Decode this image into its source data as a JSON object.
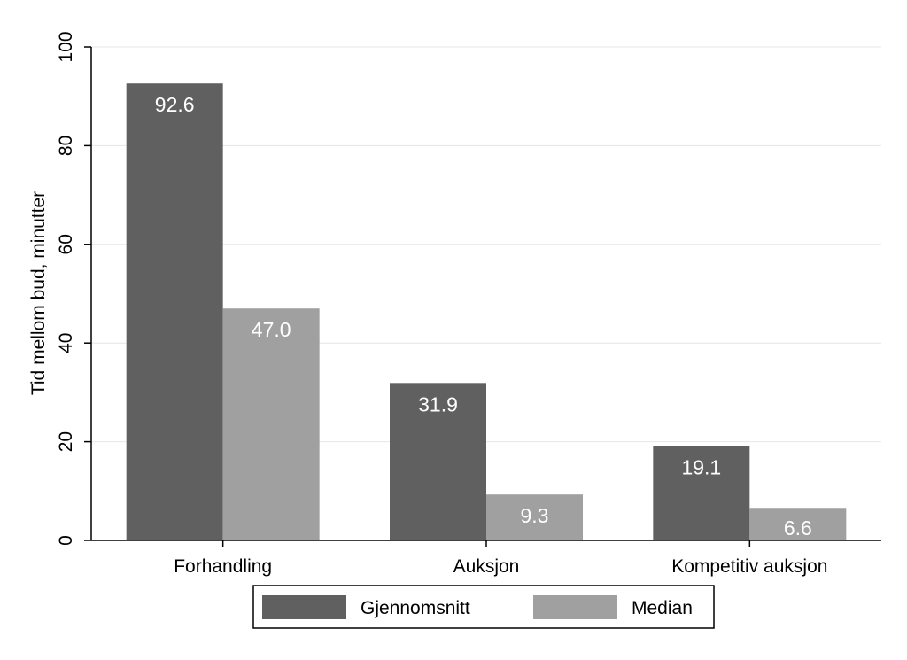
{
  "chart_data": {
    "type": "bar",
    "categories": [
      "Forhandling",
      "Auksjon",
      "Kompetitiv auksjon"
    ],
    "series": [
      {
        "name": "Gjennomsnitt",
        "values": [
          92.6,
          31.9,
          19.1
        ],
        "labels": [
          "92.6",
          "31.9",
          "19.1"
        ],
        "color": "#606060"
      },
      {
        "name": "Median",
        "values": [
          47.0,
          9.3,
          6.6
        ],
        "labels": [
          "47.0",
          "9.3",
          "6.6"
        ],
        "color": "#a0a0a0"
      }
    ],
    "ylabel": "Tid mellom bud, minutter",
    "xlabel": "",
    "ylim": [
      0,
      100
    ],
    "yticks": [
      0,
      20,
      40,
      60,
      80,
      100
    ],
    "ytick_labels": [
      "0",
      "20",
      "40",
      "60",
      "80",
      "100"
    ],
    "grid": true,
    "gridline_color": "#e6e6e6",
    "legend_position": "bottom",
    "background": "#ffffff"
  }
}
